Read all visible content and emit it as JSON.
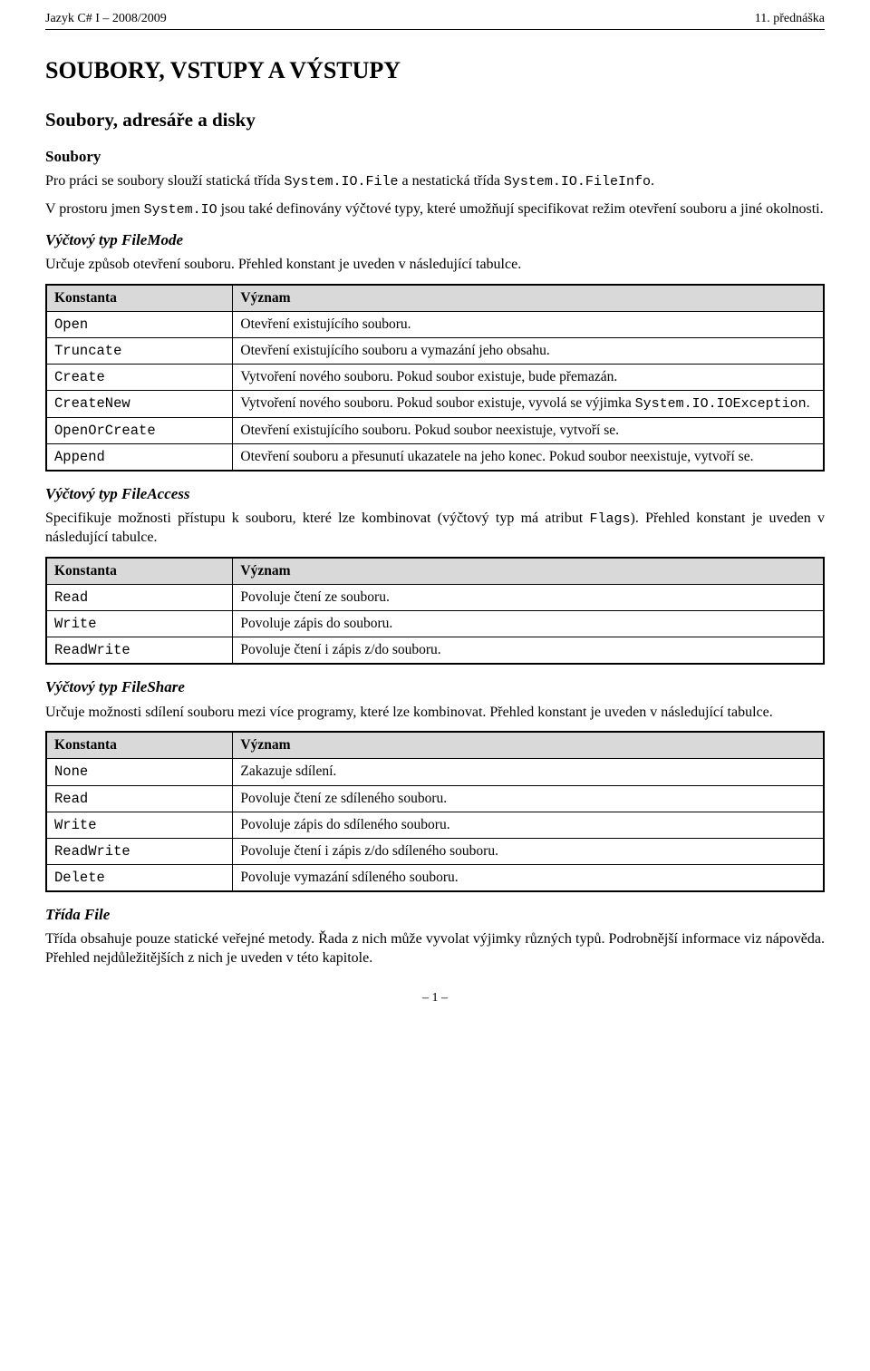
{
  "header": {
    "left": "Jazyk C# I – 2008/2009",
    "right": "11. přednáška"
  },
  "title": "SOUBORY, VSTUPY A VÝSTUPY",
  "section1": "Soubory, adresáře a disky",
  "sub_soubory": "Soubory",
  "para1_a": "Pro práci se soubory slouží statická třída ",
  "para1_b": " a nestatická třída ",
  "para1_c": ".",
  "code_file": "System.IO.File",
  "code_fileinfo": "System.IO.FileInfo",
  "para2_a": "V prostoru jmen ",
  "para2_b": " jsou také definovány výčtové typy, které umožňují specifikovat režim otevření souboru a jiné okolnosti.",
  "code_systemio": "System.IO",
  "enum_filemode": {
    "head": "Výčtový typ FileMode",
    "para": "Určuje způsob otevření souboru. Přehled konstant je uveden v následující tabulce.",
    "col1": "Konstanta",
    "col2": "Význam",
    "rows": [
      {
        "k": "Open",
        "v": "Otevření existujícího souboru."
      },
      {
        "k": "Truncate",
        "v": "Otevření existujícího souboru a vymazání jeho obsahu."
      },
      {
        "k": "Create",
        "v": "Vytvoření nového souboru. Pokud soubor existuje, bude přemazán."
      },
      {
        "k": "CreateNew",
        "v_a": "Vytvoření nového souboru. Pokud soubor existuje, vyvolá se výjimka ",
        "v_code": "System.IO.IOException",
        "v_b": "."
      },
      {
        "k": "OpenOrCreate",
        "v": "Otevření existujícího souboru. Pokud soubor neexistuje, vytvoří se."
      },
      {
        "k": "Append",
        "v": "Otevření souboru a přesunutí ukazatele na jeho konec. Pokud soubor neexistuje, vytvoří se."
      }
    ]
  },
  "enum_fileaccess": {
    "head": "Výčtový typ FileAccess",
    "para_a": "Specifikuje možnosti přístupu k souboru, které lze kombinovat (výčtový typ má atribut ",
    "para_code": "Flags",
    "para_b": "). Přehled konstant je uveden v následující tabulce.",
    "col1": "Konstanta",
    "col2": "Význam",
    "rows": [
      {
        "k": "Read",
        "v": "Povoluje čtení ze souboru."
      },
      {
        "k": "Write",
        "v": "Povoluje zápis do souboru."
      },
      {
        "k": "ReadWrite",
        "v": "Povoluje čtení i zápis z/do souboru."
      }
    ]
  },
  "enum_fileshare": {
    "head": "Výčtový typ FileShare",
    "para": "Určuje možnosti sdílení souboru mezi více programy, které lze kombinovat. Přehled konstant je uveden v následující tabulce.",
    "col1": "Konstanta",
    "col2": "Význam",
    "rows": [
      {
        "k": "None",
        "v": "Zakazuje sdílení."
      },
      {
        "k": "Read",
        "v": "Povoluje čtení ze sdíleného souboru."
      },
      {
        "k": "Write",
        "v": "Povoluje zápis do sdíleného souboru."
      },
      {
        "k": "ReadWrite",
        "v": "Povoluje čtení i zápis z/do sdíleného souboru."
      },
      {
        "k": "Delete",
        "v": "Povoluje vymazání sdíleného souboru."
      }
    ]
  },
  "class_file": {
    "head": "Třída File",
    "para": "Třída obsahuje pouze statické veřejné metody. Řada z nich může vyvolat výjimky různých typů. Podrobnější informace viz nápověda. Přehled nejdůležitějších z nich je uveden v této kapitole."
  },
  "page_num": "– 1 –"
}
